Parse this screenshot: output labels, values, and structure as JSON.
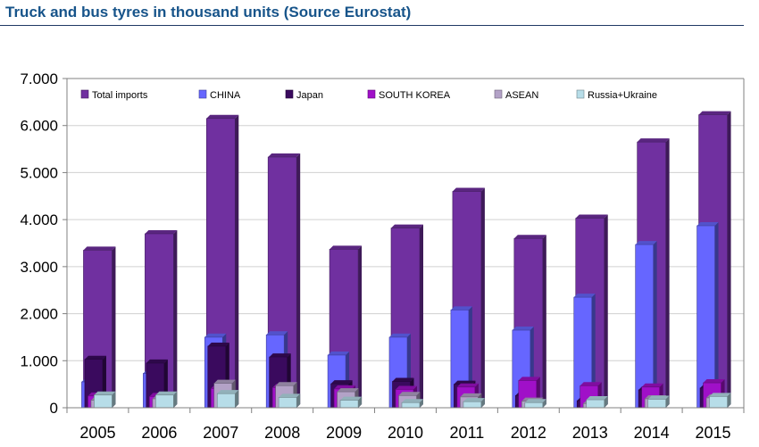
{
  "header": {
    "title": "Truck and bus tyres in thousand units (Source Eurostat)"
  },
  "chart_data": {
    "type": "bar",
    "title": "Truck and bus tyres in thousand units (Source Eurostat)",
    "xlabel": "",
    "ylabel": "",
    "ylim": [
      0,
      7000
    ],
    "yticks": [
      "0",
      "1.000",
      "2.000",
      "3.000",
      "4.000",
      "5.000",
      "6.000",
      "7.000"
    ],
    "grid": true,
    "legend_position": "top",
    "categories": [
      "2005",
      "2006",
      "2007",
      "2008",
      "2009",
      "2010",
      "2011",
      "2012",
      "2013",
      "2014",
      "2015"
    ],
    "series": [
      {
        "name": "Total imports",
        "color": "#7030a0",
        "values": [
          3350,
          3700,
          6150,
          5330,
          3370,
          3820,
          4600,
          3600,
          4030,
          5650,
          6230
        ]
      },
      {
        "name": "CHINA",
        "color": "#6666ff",
        "values": [
          550,
          730,
          1500,
          1550,
          1120,
          1500,
          2080,
          1650,
          2350,
          3470,
          3870
        ]
      },
      {
        "name": "Japan",
        "color": "#3a0a5e",
        "values": [
          1030,
          950,
          1310,
          1080,
          510,
          560,
          500,
          260,
          150,
          380,
          420
        ]
      },
      {
        "name": "SOUTH KOREA",
        "color": "#a010c8",
        "values": [
          250,
          240,
          410,
          430,
          400,
          390,
          440,
          580,
          470,
          440,
          530
        ]
      },
      {
        "name": "ASEAN",
        "color": "#b3a2c7",
        "values": [
          160,
          190,
          520,
          470,
          340,
          260,
          230,
          140,
          90,
          190,
          210
        ]
      },
      {
        "name": "Russia+Ukraine",
        "color": "#b7dde8",
        "values": [
          270,
          270,
          300,
          220,
          160,
          110,
          130,
          110,
          170,
          180,
          240
        ]
      }
    ]
  }
}
